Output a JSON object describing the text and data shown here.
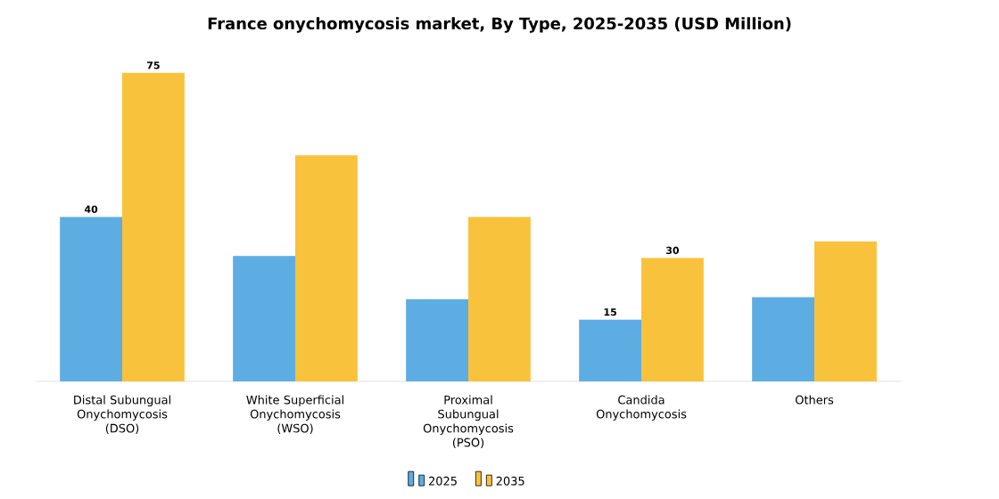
{
  "chart_data": {
    "type": "bar",
    "title": "France onychomycosis market, By Type, 2025-2035 (USD Million)",
    "categories": [
      "Distal Subungual Onychomycosis (DSO)",
      "White Superficial Onychomycosis (WSO)",
      "Proximal Subungual Onychomycosis (PSO)",
      "Candida Onychomycosis",
      "Others"
    ],
    "series": [
      {
        "name": "2025",
        "color": "#5dade2",
        "values": [
          40,
          30.5,
          20,
          15,
          20.5
        ],
        "value_labels": [
          "40",
          null,
          null,
          "15",
          null
        ]
      },
      {
        "name": "2035",
        "color": "#f9c23c",
        "values": [
          75,
          55,
          40,
          30,
          34
        ],
        "value_labels": [
          "75",
          null,
          null,
          "30",
          null
        ]
      }
    ],
    "legend": "bottom"
  }
}
